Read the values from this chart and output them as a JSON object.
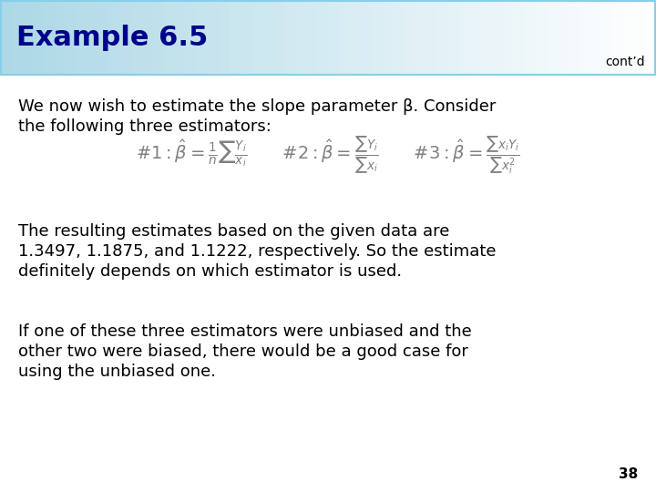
{
  "title": "Example 6.5",
  "contd": "cont’d",
  "header_border_color": "#87CEEB",
  "title_color": "#00008B",
  "body_bg_color": "#FFFFFF",
  "text_color": "#000000",
  "para1_line1": "We now wish to estimate the slope parameter β. Consider",
  "para1_line2": "the following three estimators:",
  "para2_line1": "The resulting estimates based on the given data are",
  "para2_line2": "1.3497, 1.1875, and 1.1222, respectively. So the estimate",
  "para2_line3": "definitely depends on which estimator is used.",
  "para3_line1": "If one of these three estimators were unbiased and the",
  "para3_line2": "other two were biased, there would be a good case for",
  "para3_line3": "using the unbiased one.",
  "page_num": "38",
  "font_size_title": 22,
  "font_size_body": 13,
  "font_size_formula": 13,
  "font_size_contd": 10,
  "font_size_page": 11
}
